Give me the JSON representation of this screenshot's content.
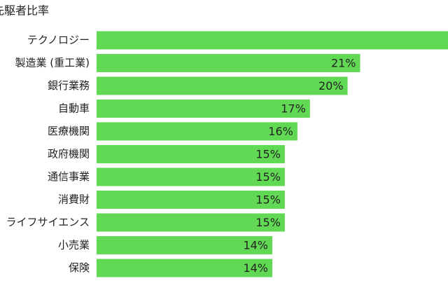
{
  "chart_data": {
    "type": "bar",
    "orientation": "horizontal",
    "title": "先駆者比率",
    "categories": [
      "テクノロジー",
      "製造業 (重工業)",
      "銀行業務",
      "自動車",
      "医療機関",
      "政府機関",
      "通信事業",
      "消費財",
      "ライフサイエンス",
      "小売業",
      "保険"
    ],
    "values": [
      28,
      21,
      20,
      17,
      16,
      15,
      15,
      15,
      15,
      14,
      14
    ],
    "value_labels": [
      null,
      "21%",
      "20%",
      "17%",
      "16%",
      "15%",
      "15%",
      "15%",
      "15%",
      "14%",
      "14%"
    ],
    "color": "#62d955",
    "xlim": [
      0,
      28
    ]
  }
}
